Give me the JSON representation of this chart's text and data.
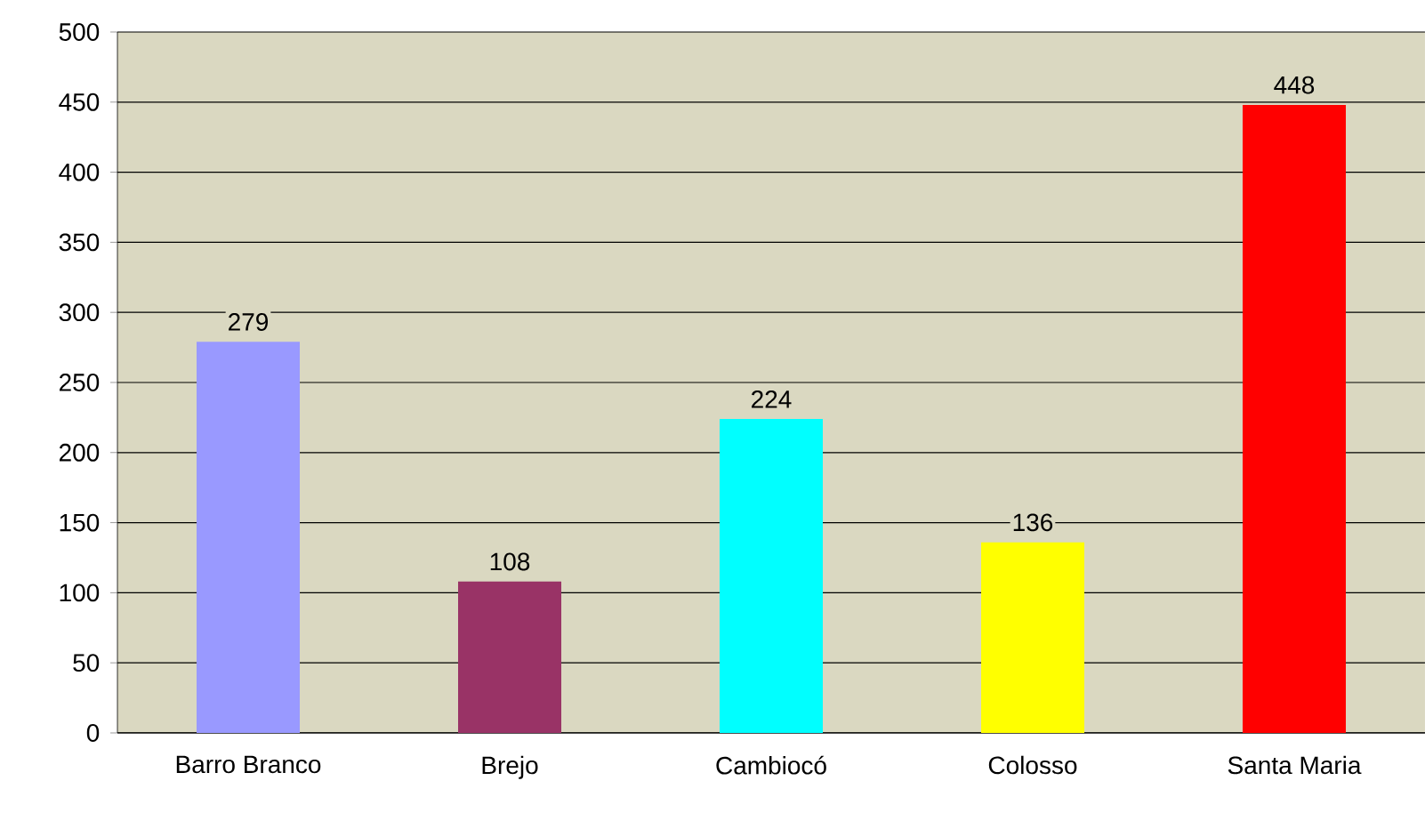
{
  "chart_data": {
    "type": "bar",
    "categories": [
      "Barro Branco",
      "Brejo",
      "Cambiocó",
      "Colosso",
      "Santa Maria"
    ],
    "values": [
      279,
      108,
      224,
      136,
      448
    ],
    "colors": [
      "#9999ff",
      "#993366",
      "#00ffff",
      "#ffff00",
      "#ff0000"
    ],
    "ylim": [
      0,
      500
    ],
    "yticks": [
      0,
      50,
      100,
      150,
      200,
      250,
      300,
      350,
      400,
      450,
      500
    ],
    "grid": "y",
    "data_labels": true
  }
}
